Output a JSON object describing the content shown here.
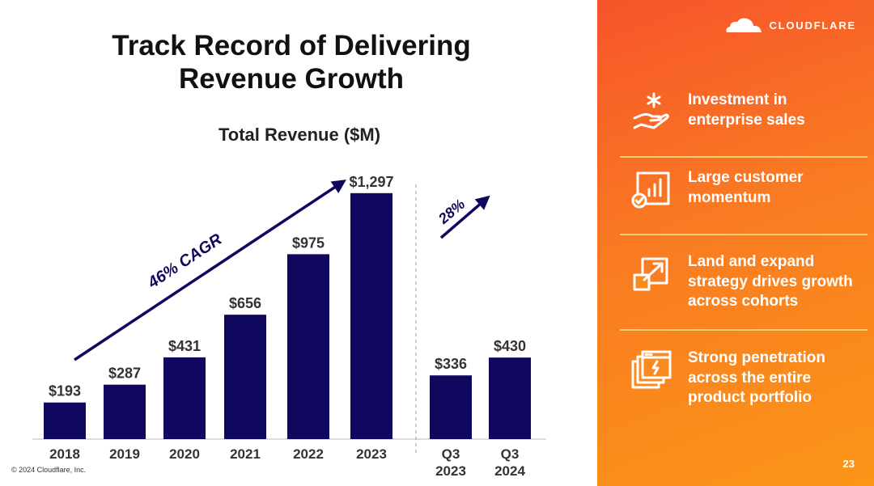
{
  "slide": {
    "title_line1": "Track Record of Delivering",
    "title_line2": "Revenue Growth",
    "copyright": "© 2024 Cloudflare, Inc.",
    "page_number": "23"
  },
  "brand": {
    "logo_text": "CLOUDFLARE",
    "icon": "cloud-icon",
    "accent": "#f97b22",
    "bar_color": "#10085e"
  },
  "chart_data": {
    "type": "bar",
    "title": "Total Revenue ($M)",
    "xlabel": "",
    "ylabel": "",
    "ylim": [
      0,
      1400
    ],
    "grid": false,
    "annual": {
      "categories": [
        "2018",
        "2019",
        "2020",
        "2021",
        "2022",
        "2023"
      ],
      "values": [
        193,
        287,
        431,
        656,
        975,
        1297
      ],
      "labels": [
        "$193",
        "$287",
        "$431",
        "$656",
        "$975",
        "$1,297"
      ]
    },
    "quarterly": {
      "categories": [
        [
          "Q3",
          "2023"
        ],
        [
          "Q3",
          "2024"
        ]
      ],
      "values": [
        336,
        430
      ],
      "labels": [
        "$336",
        "$430"
      ]
    },
    "annotations": [
      {
        "text": "46% CAGR",
        "from": "2018",
        "to": "2023"
      },
      {
        "text": "28%",
        "from": "Q3 2023",
        "to": "Q3 2024"
      }
    ]
  },
  "highlights": [
    {
      "icon": "hand-sparkle-icon",
      "lines": [
        "Investment in",
        "enterprise sales"
      ]
    },
    {
      "icon": "bar-chart-check-icon",
      "lines": [
        "Large customer",
        "momentum"
      ]
    },
    {
      "icon": "expand-arrow-icon",
      "lines": [
        "Land and expand",
        "strategy drives growth",
        "across cohorts"
      ]
    },
    {
      "icon": "product-windows-icon",
      "lines": [
        "Strong penetration",
        "across the entire",
        "product portfolio"
      ]
    }
  ]
}
